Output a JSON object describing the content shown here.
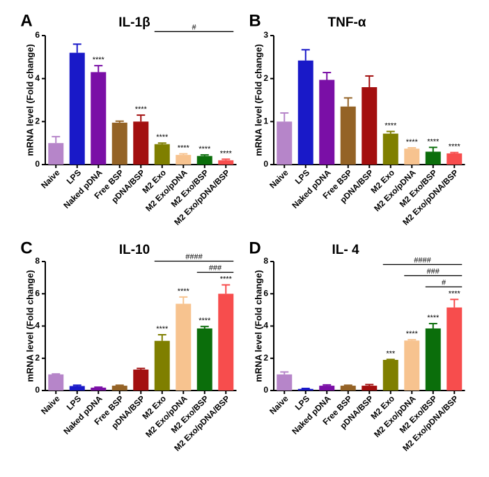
{
  "chart_data": [
    {
      "type": "bar",
      "panel": "A",
      "title": "IL-1β",
      "ylabel": "mRNA level (Fold change)",
      "xlabel": "",
      "ylim": [
        0,
        6
      ],
      "yticks": [
        "0",
        "2",
        "4",
        "6"
      ],
      "grid": false,
      "categories": [
        "Naive",
        "LPS",
        "Naked pDNA",
        "Free BSP",
        "pDNA/BSP",
        "M2 Exo",
        "M2 Exo/pDNA",
        "M2 Exo/BSP",
        "M2 Exo/pDNA/BSP"
      ],
      "values": [
        1.0,
        5.2,
        4.3,
        1.95,
        2.0,
        0.95,
        0.45,
        0.4,
        0.2
      ],
      "errors": [
        0.3,
        0.4,
        0.3,
        0.07,
        0.3,
        0.05,
        0.05,
        0.05,
        0.05
      ],
      "colors": [
        "#b685c9",
        "#1919c8",
        "#7a0fa6",
        "#946326",
        "#a30f0f",
        "#7f7f00",
        "#f7c38f",
        "#0b6e0b",
        "#f74d4d"
      ],
      "annotations": [
        "",
        "",
        "****",
        "",
        "****",
        "****",
        "****",
        "****",
        "****"
      ],
      "brackets": [
        {
          "from": 5,
          "to": 8,
          "label": "#"
        }
      ]
    },
    {
      "type": "bar",
      "panel": "B",
      "title": "TNF-α",
      "ylabel": "mRNA level (Fold change)",
      "xlabel": "",
      "ylim": [
        0,
        3
      ],
      "yticks": [
        "0",
        "1",
        "2",
        "3"
      ],
      "grid": false,
      "categories": [
        "Naive",
        "LPS",
        "Naked pDNA",
        "Free BSP",
        "pDNA/BSP",
        "M2 Exo",
        "M2 Exo/pDNA",
        "M2 Exo/BSP",
        "M2 Exo/pDNA/BSP"
      ],
      "values": [
        1.0,
        2.42,
        1.97,
        1.35,
        1.8,
        0.72,
        0.37,
        0.3,
        0.26
      ],
      "errors": [
        0.2,
        0.25,
        0.17,
        0.2,
        0.26,
        0.05,
        0.02,
        0.1,
        0.02
      ],
      "colors": [
        "#b685c9",
        "#1919c8",
        "#7a0fa6",
        "#946326",
        "#a30f0f",
        "#7f7f00",
        "#f7c38f",
        "#0b6e0b",
        "#f74d4d"
      ],
      "annotations": [
        "",
        "",
        "",
        "",
        "",
        "****",
        "****",
        "****",
        "****"
      ],
      "brackets": []
    },
    {
      "type": "bar",
      "panel": "C",
      "title": "IL-10",
      "ylabel": "mRNA level (Fold change)",
      "xlabel": "",
      "ylim": [
        0,
        8
      ],
      "yticks": [
        "0",
        "2",
        "4",
        "6",
        "8"
      ],
      "grid": false,
      "categories": [
        "Naive",
        "LPS",
        "Naked pDNA",
        "Free BSP",
        "pDNA/BSP",
        "M2 Exo",
        "M2 Exo/pDNA",
        "M2 Exo/BSP",
        "M2 Exo/pDNA/BSP"
      ],
      "values": [
        1.0,
        0.28,
        0.18,
        0.3,
        1.3,
        3.08,
        5.38,
        3.85,
        6.0
      ],
      "errors": [
        0.03,
        0.05,
        0.03,
        0.03,
        0.07,
        0.38,
        0.42,
        0.12,
        0.55
      ],
      "colors": [
        "#b685c9",
        "#1919c8",
        "#7a0fa6",
        "#946326",
        "#a30f0f",
        "#7f7f00",
        "#f7c38f",
        "#0b6e0b",
        "#f74d4d"
      ],
      "annotations": [
        "",
        "",
        "",
        "",
        "",
        "****",
        "****",
        "****",
        "****"
      ],
      "brackets": [
        {
          "from": 5,
          "to": 8,
          "label": "####"
        },
        {
          "from": 7,
          "to": 8,
          "label": "###"
        }
      ]
    },
    {
      "type": "bar",
      "panel": "D",
      "title": "IL- 4",
      "ylabel": "mRNA level (Fold change)",
      "xlabel": "",
      "ylim": [
        0,
        8
      ],
      "yticks": [
        "0",
        "2",
        "4",
        "6",
        "8"
      ],
      "grid": false,
      "categories": [
        "Naive",
        "LPS",
        "Naked pDNA",
        "Free BSP",
        "pDNA/BSP",
        "M2 Exo",
        "M2 Exo/pDNA",
        "M2 Exo/BSP",
        "M2 Exo/pDNA/BSP"
      ],
      "values": [
        1.0,
        0.1,
        0.3,
        0.3,
        0.3,
        1.9,
        3.1,
        3.85,
        5.15
      ],
      "errors": [
        0.15,
        0.03,
        0.05,
        0.03,
        0.07,
        0.03,
        0.05,
        0.3,
        0.5
      ],
      "colors": [
        "#b685c9",
        "#1919c8",
        "#7a0fa6",
        "#946326",
        "#a30f0f",
        "#7f7f00",
        "#f7c38f",
        "#0b6e0b",
        "#f74d4d"
      ],
      "annotations": [
        "",
        "",
        "",
        "",
        "",
        "***",
        "****",
        "****",
        "****"
      ],
      "brackets": [
        {
          "from": 5,
          "to": 8,
          "label": "####"
        },
        {
          "from": 6,
          "to": 8,
          "label": "###"
        },
        {
          "from": 7,
          "to": 8,
          "label": "#"
        }
      ]
    }
  ]
}
